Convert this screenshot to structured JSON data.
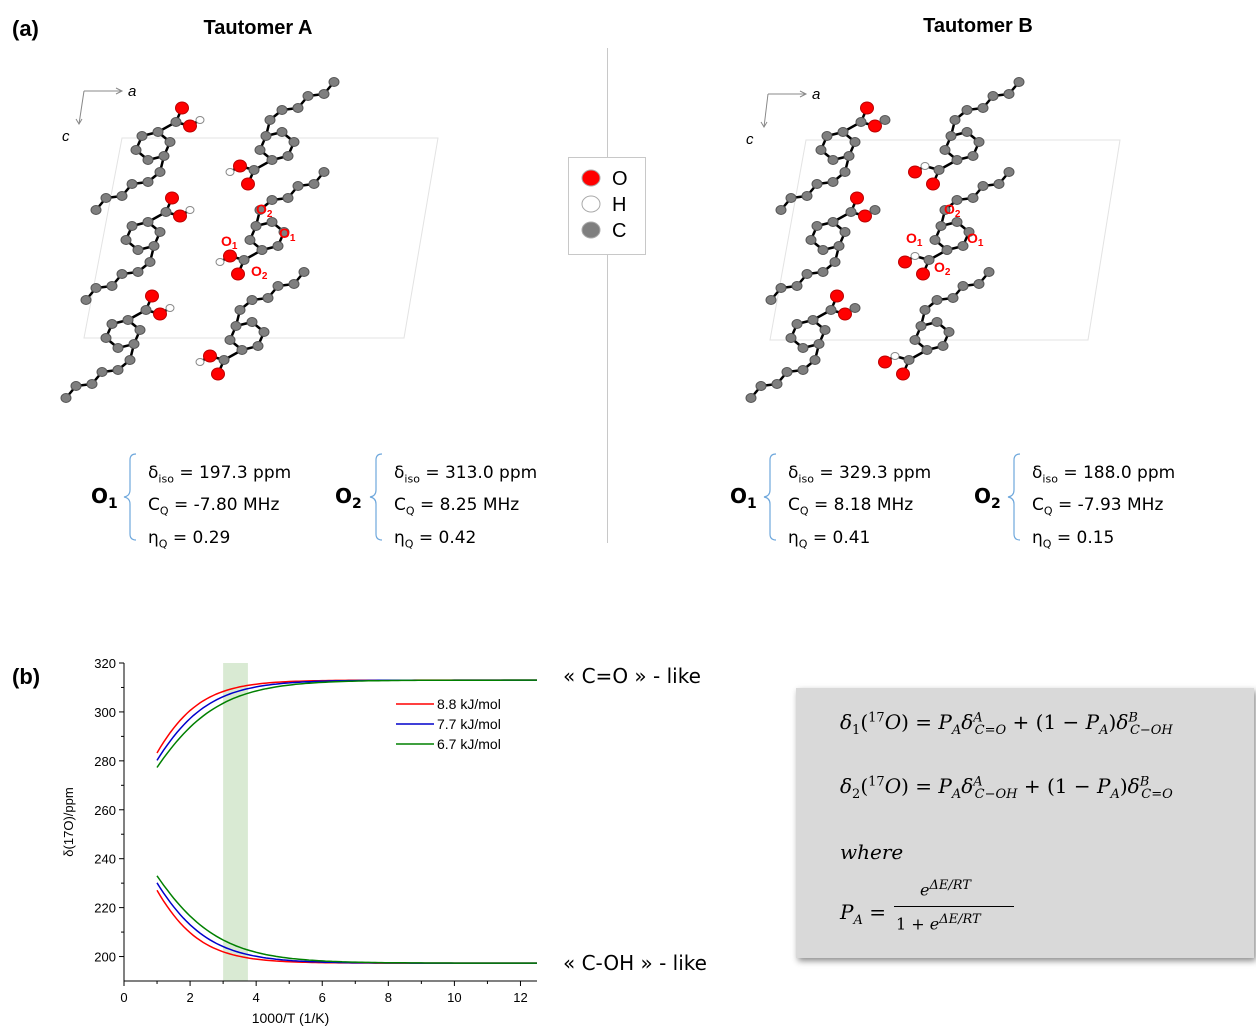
{
  "panel_a": {
    "label": "(a)",
    "tautomer_a": {
      "title": "Tautomer A",
      "axes": {
        "a": "a",
        "c": "c"
      },
      "atom_labels": [
        "O",
        "2",
        "O",
        "1",
        "O",
        "1",
        "O",
        "2"
      ],
      "o1": {
        "label": "O",
        "sub": "1",
        "d_iso": "δ",
        "d_iso_sub": "iso",
        "d_iso_val": " = 197.3 ppm",
        "cq": "C",
        "cq_sub": "Q",
        "cq_val": " = -7.80 MHz",
        "eta": "η",
        "eta_sub": "Q",
        "eta_val": " = 0.29"
      },
      "o2": {
        "label": "O",
        "sub": "2",
        "d_iso": "δ",
        "d_iso_sub": "iso",
        "d_iso_val": " = 313.0 ppm",
        "cq": "C",
        "cq_sub": "Q",
        "cq_val": " = 8.25 MHz",
        "eta": "η",
        "eta_sub": "Q",
        "eta_val": " = 0.42"
      }
    },
    "tautomer_b": {
      "title": "Tautomer B",
      "axes": {
        "a": "a",
        "c": "c"
      },
      "o1": {
        "label": "O",
        "sub": "1",
        "d_iso": "δ",
        "d_iso_sub": "iso",
        "d_iso_val": " = 329.3 ppm",
        "cq": "C",
        "cq_sub": "Q",
        "cq_val": " = 8.18 MHz",
        "eta": "η",
        "eta_sub": "Q",
        "eta_val": " = 0.41"
      },
      "o2": {
        "label": "O",
        "sub": "2",
        "d_iso": "δ",
        "d_iso_sub": "iso",
        "d_iso_val": " = 188.0 ppm",
        "cq": "C",
        "cq_sub": "Q",
        "cq_val": " = -7.93 MHz",
        "eta": "η",
        "eta_sub": "Q",
        "eta_val": " = 0.15"
      }
    },
    "atom_legend": [
      {
        "symbol": "O",
        "color": "#ff0000"
      },
      {
        "symbol": "H",
        "color": "#ffffff"
      },
      {
        "symbol": "C",
        "color": "#7f7f7f"
      }
    ]
  },
  "panel_b": {
    "label": "(b)",
    "curve_labels": {
      "top": "« C=O » - like",
      "bottom": "« C-OH » - like"
    },
    "formula": {
      "where": "where"
    }
  },
  "chart_data": {
    "type": "line",
    "xlabel": "1000/T (1/K)",
    "ylabel": "δ(17O)/ppm",
    "xlim": [
      0,
      12.5
    ],
    "ylim": [
      190,
      320
    ],
    "x_ticks": [
      0,
      2,
      4,
      6,
      8,
      10,
      12
    ],
    "y_ticks": [
      200,
      220,
      240,
      260,
      280,
      300,
      320
    ],
    "shaded_region": {
      "x": [
        3.0,
        3.75
      ],
      "color": "#d9ead3"
    },
    "legend": "top-right",
    "delta_c_o": 313.0,
    "delta_c_oh": 197.3,
    "x_start": 1.0,
    "series": [
      {
        "name": "8.8 kJ/mol",
        "color": "#ff0000",
        "dE_kJ": 8.8
      },
      {
        "name": "7.7 kJ/mol",
        "color": "#0000cc",
        "dE_kJ": 7.7
      },
      {
        "name": "6.7 kJ/mol",
        "color": "#008000",
        "dE_kJ": 6.7
      }
    ]
  }
}
